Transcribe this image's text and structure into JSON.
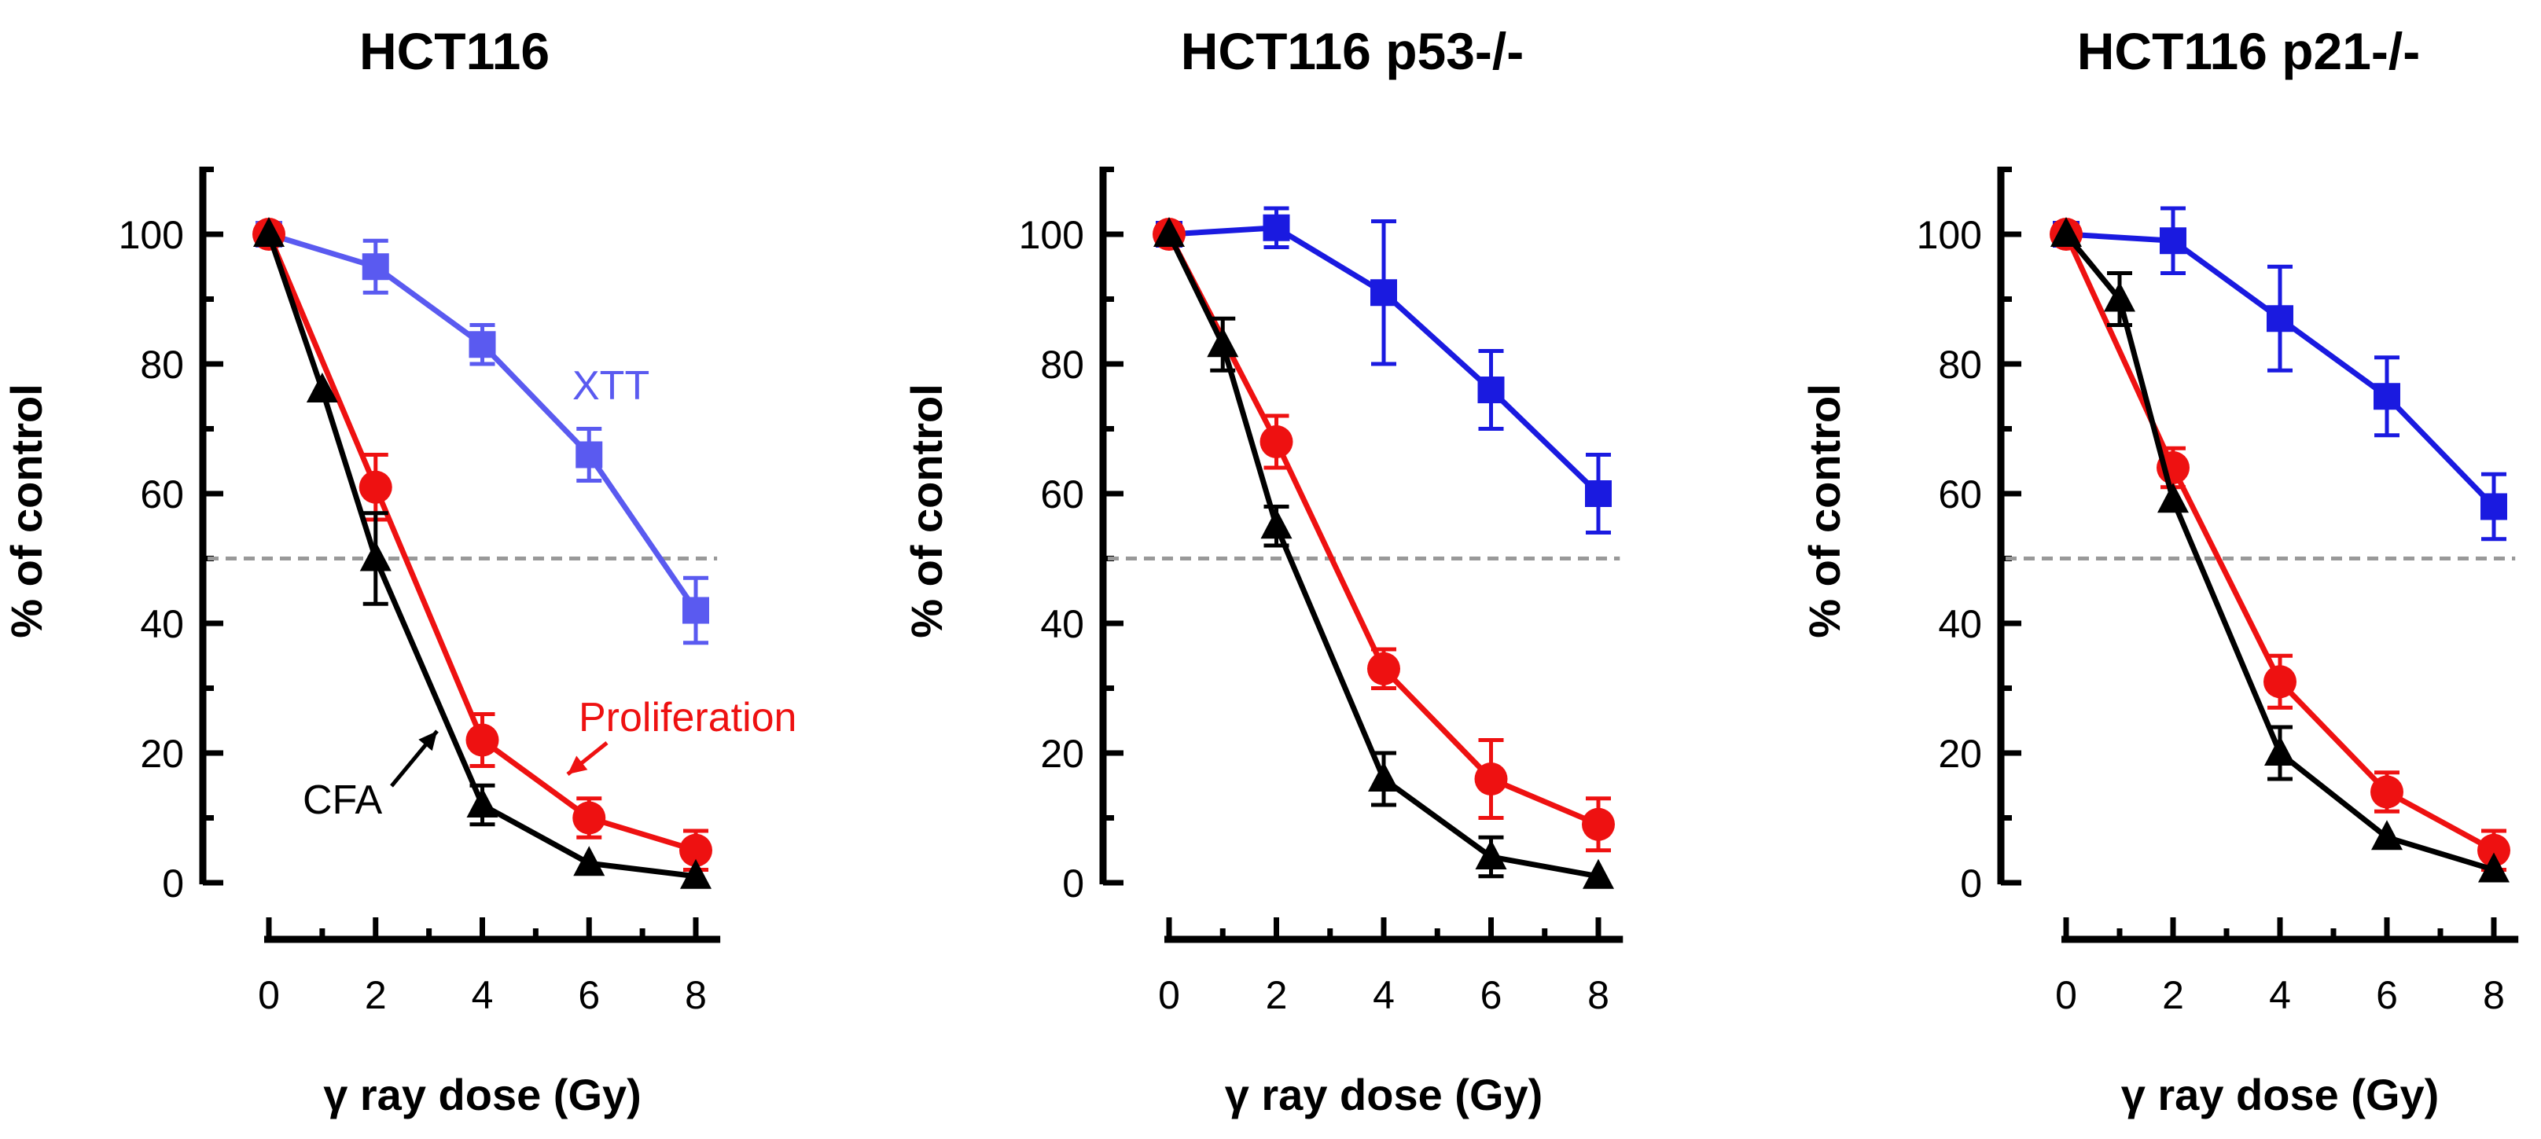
{
  "chart_data": [
    {
      "type": "line",
      "title": "HCT116",
      "xlabel": "γ ray dose (Gy)",
      "ylabel": "% of control",
      "xlim": [
        0,
        8.4
      ],
      "ylim": [
        0,
        110
      ],
      "xticks": [
        0,
        2,
        4,
        6,
        8
      ],
      "yticks": [
        0,
        20,
        40,
        60,
        80,
        100
      ],
      "reference_line": 50,
      "series": [
        {
          "name": "XTT",
          "color": "#5a5af0",
          "marker": "square",
          "x": [
            0,
            2,
            4,
            6,
            8
          ],
          "y": [
            100,
            95,
            83,
            66,
            42
          ],
          "err": [
            0,
            4,
            3,
            4,
            5
          ]
        },
        {
          "name": "Proliferation",
          "color": "#ee1111",
          "marker": "circle",
          "x": [
            0,
            2,
            4,
            6,
            8
          ],
          "y": [
            100,
            61,
            22,
            10,
            5
          ],
          "err": [
            0,
            5,
            4,
            3,
            3
          ]
        },
        {
          "name": "CFA",
          "color": "#000000",
          "marker": "triangle",
          "x": [
            0,
            1,
            2,
            4,
            6,
            8
          ],
          "y": [
            100,
            76,
            50,
            12,
            3,
            1
          ],
          "err": [
            0,
            0,
            7,
            3,
            0,
            0
          ]
        }
      ],
      "annotations": [
        {
          "text": "XTT",
          "color": "#5a5af0"
        },
        {
          "text": "Proliferation",
          "color": "#ee1111"
        },
        {
          "text": "CFA",
          "color": "#000000"
        }
      ]
    },
    {
      "type": "line",
      "title": "HCT116 p53-/-",
      "xlabel": "γ ray dose (Gy)",
      "ylabel": "% of control",
      "xlim": [
        0,
        8.4
      ],
      "ylim": [
        0,
        110
      ],
      "xticks": [
        0,
        2,
        4,
        6,
        8
      ],
      "yticks": [
        0,
        20,
        40,
        60,
        80,
        100
      ],
      "reference_line": 50,
      "series": [
        {
          "name": "XTT",
          "color": "#1a1ae0",
          "marker": "square",
          "x": [
            0,
            2,
            4,
            6,
            8
          ],
          "y": [
            100,
            101,
            91,
            76,
            60
          ],
          "err": [
            0,
            3,
            11,
            6,
            6
          ]
        },
        {
          "name": "Proliferation",
          "color": "#ee1111",
          "marker": "circle",
          "x": [
            0,
            2,
            4,
            6,
            8
          ],
          "y": [
            100,
            68,
            33,
            16,
            9
          ],
          "err": [
            0,
            4,
            3,
            6,
            4
          ]
        },
        {
          "name": "CFA",
          "color": "#000000",
          "marker": "triangle",
          "x": [
            0,
            1,
            2,
            4,
            6,
            8
          ],
          "y": [
            100,
            83,
            55,
            16,
            4,
            1
          ],
          "err": [
            0,
            4,
            3,
            4,
            3,
            0
          ]
        }
      ],
      "annotations": []
    },
    {
      "type": "line",
      "title": "HCT116 p21-/-",
      "xlabel": "γ ray dose (Gy)",
      "ylabel": "% of control",
      "xlim": [
        0,
        8.4
      ],
      "ylim": [
        0,
        110
      ],
      "xticks": [
        0,
        2,
        4,
        6,
        8
      ],
      "yticks": [
        0,
        20,
        40,
        60,
        80,
        100
      ],
      "reference_line": 50,
      "series": [
        {
          "name": "XTT",
          "color": "#1a1ae0",
          "marker": "square",
          "x": [
            0,
            2,
            4,
            6,
            8
          ],
          "y": [
            100,
            99,
            87,
            75,
            58
          ],
          "err": [
            0,
            5,
            8,
            6,
            5
          ]
        },
        {
          "name": "Proliferation",
          "color": "#ee1111",
          "marker": "circle",
          "x": [
            0,
            2,
            4,
            6,
            8
          ],
          "y": [
            100,
            64,
            31,
            14,
            5
          ],
          "err": [
            0,
            3,
            4,
            3,
            3
          ]
        },
        {
          "name": "CFA",
          "color": "#000000",
          "marker": "triangle",
          "x": [
            0,
            1,
            2,
            4,
            6,
            8
          ],
          "y": [
            100,
            90,
            59,
            20,
            7,
            2
          ],
          "err": [
            0,
            4,
            0,
            4,
            0,
            0
          ]
        }
      ],
      "annotations": []
    }
  ]
}
